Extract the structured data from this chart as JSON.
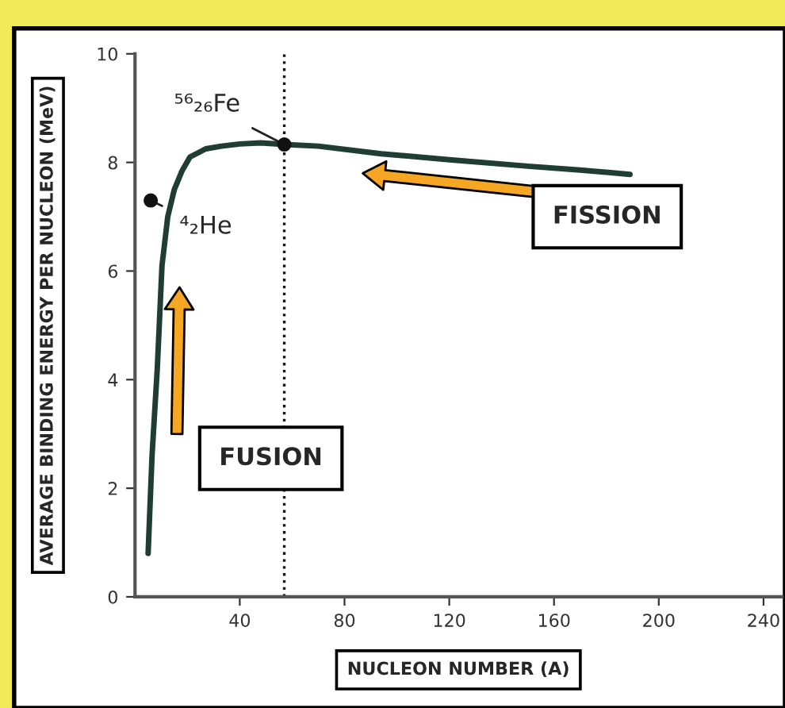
{
  "chart_data": {
    "type": "line",
    "xlabel": "NUCLEON NUMBER (A)",
    "ylabel": "AVERAGE BINDING ENERGY PER NUCLEON (MeV)",
    "xlim": [
      0,
      247
    ],
    "ylim": [
      0,
      10
    ],
    "xticks": [
      40,
      80,
      120,
      160,
      200,
      240
    ],
    "yticks": [
      0,
      2,
      4,
      6,
      8,
      10
    ],
    "grid": false,
    "legend": false,
    "series": [
      {
        "color": "#1f3d33",
        "x": [
          5,
          6.5,
          8.5,
          10.3,
          12.5,
          15,
          18,
          21,
          27,
          33,
          40,
          48,
          57,
          70,
          94,
          120,
          150,
          170,
          189
        ],
        "values": [
          0.8,
          2.6,
          4.2,
          6.1,
          7.0,
          7.5,
          7.85,
          8.1,
          8.25,
          8.3,
          8.34,
          8.36,
          8.33,
          8.3,
          8.16,
          8.05,
          7.93,
          7.86,
          7.78
        ]
      },
      {
        "type": "scatter",
        "marker": "circle",
        "color": "#111111",
        "x": [
          6,
          57
        ],
        "values": [
          7.3,
          8.33
        ]
      }
    ],
    "ref_lines": [
      {
        "axis": "x",
        "value": 57,
        "line_style": "dotted",
        "color": "#111111"
      }
    ],
    "annotations": [
      {
        "text": "⁵⁶₂₆Fe",
        "x": 57,
        "y": 8.33
      },
      {
        "text": "⁴₂He",
        "x": 6,
        "y": 7.3
      },
      "FUSION",
      "FISSION"
    ]
  }
}
